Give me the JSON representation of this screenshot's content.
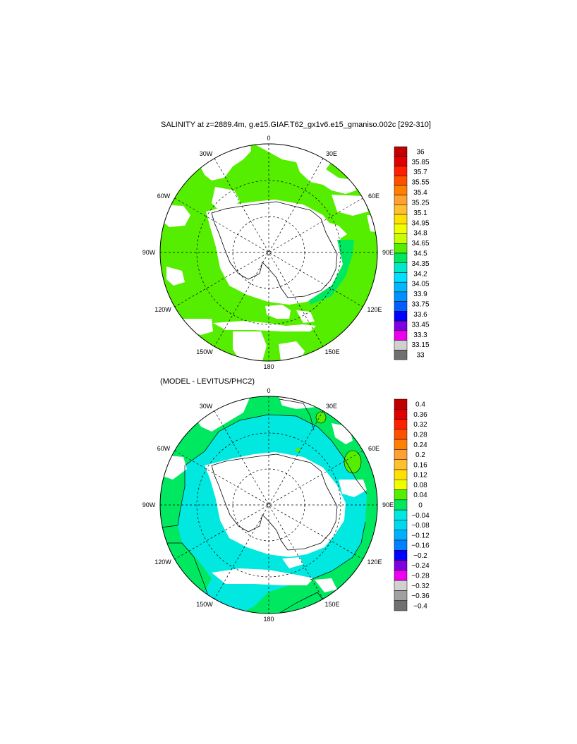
{
  "figure": {
    "title_top": "SALINITY at z=2889.4m, g.e15.GIAF.T62_gx1v6.e15_gmaniso.002c [292-310]",
    "title_bottom": "(MODEL - LEVITUS/PHC2)"
  },
  "longitude_labels": [
    "0",
    "30E",
    "60E",
    "90E",
    "120E",
    "150E",
    "180",
    "150W",
    "120W",
    "90W",
    "60W",
    "30W"
  ],
  "colorbar_top": {
    "labels": [
      "36",
      "35.85",
      "35.7",
      "35.55",
      "35.4",
      "35.25",
      "35.1",
      "34.95",
      "34.8",
      "34.65",
      "34.5",
      "34.35",
      "34.2",
      "34.05",
      "33.9",
      "33.75",
      "33.6",
      "33.45",
      "33.3",
      "33.15",
      "33"
    ],
    "colors": [
      "#c00000",
      "#e00000",
      "#ff2000",
      "#ff5000",
      "#ff8000",
      "#ffa030",
      "#ffc030",
      "#ffe000",
      "#f0ff00",
      "#c8ff00",
      "#55ee00",
      "#00e860",
      "#00e8c8",
      "#00e0ff",
      "#00b8ff",
      "#0090ff",
      "#0060ff",
      "#0000ff",
      "#8000e0",
      "#ee00ee",
      "#d0d0d0",
      "#707070"
    ]
  },
  "colorbar_bottom": {
    "labels": [
      "0.4",
      "0.36",
      "0.32",
      "0.28",
      "0.24",
      "0.2",
      "0.16",
      "0.12",
      "0.08",
      "0.04",
      "0",
      "−0.04",
      "−0.08",
      "−0.12",
      "−0.16",
      "−0.2",
      "−0.24",
      "−0.28",
      "−0.32",
      "−0.36",
      "−0.4"
    ],
    "colors": [
      "#c00000",
      "#e00000",
      "#ff2000",
      "#ff5000",
      "#ff8000",
      "#ffa030",
      "#ffc030",
      "#ffe000",
      "#f0ff00",
      "#55ee00",
      "#00e860",
      "#00e8e0",
      "#00d8f0",
      "#00b0ff",
      "#0080ff",
      "#0000ff",
      "#8000e0",
      "#ee00ee",
      "#d0d0d0",
      "#a0a0a0",
      "#707070"
    ]
  }
}
